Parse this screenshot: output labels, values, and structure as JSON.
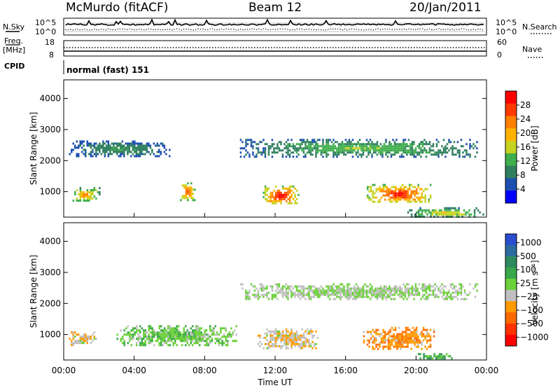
{
  "header": {
    "station": "McMurdo (fitACF)",
    "beam": "Beam 12",
    "date": "20/Jan/2011"
  },
  "ancillary": {
    "nsky_label": "N.Sky",
    "nsky_ticks": [
      "10^5",
      "10^0"
    ],
    "nsearch_label": "N.Search",
    "nsearch_ticks": [
      "10^5",
      "10^0"
    ],
    "freq_label_line1": "Freq.",
    "freq_label_line2": "[MHz]",
    "freq_ticks": [
      "18",
      "8"
    ],
    "nave_label": "Nave",
    "nave_ticks": [
      "60",
      "0"
    ],
    "cpid_label": "CPID",
    "cpid_value": "normal (fast) 151"
  },
  "chart_data": [
    {
      "type": "heatmap",
      "ylabel": "Slant Range [km]",
      "xlabel": "",
      "ylim": [
        180,
        4600
      ],
      "yticks": [
        1000,
        2000,
        3000,
        4000
      ],
      "xlim": [
        0,
        24
      ],
      "colorbar": {
        "label": "Power [dB]",
        "range": [
          0,
          32
        ],
        "ticks": [
          4,
          8,
          12,
          16,
          20,
          24,
          28
        ],
        "colors": [
          "#0000ff",
          "#1d4fb0",
          "#2f7f5f",
          "#3fae4c",
          "#c6d321",
          "#ffb300",
          "#ff7f00",
          "#ff3a00",
          "#ff0000"
        ]
      },
      "features": [
        {
          "t0": 0.3,
          "t1": 6.0,
          "r0": 2150,
          "r1": 2650,
          "value": 11
        },
        {
          "t0": 10.0,
          "t1": 23.5,
          "r0": 2150,
          "r1": 2700,
          "value": 14
        },
        {
          "t0": 0.4,
          "t1": 2.0,
          "r0": 700,
          "r1": 1150,
          "value": 22
        },
        {
          "t0": 6.6,
          "t1": 7.4,
          "r0": 750,
          "r1": 1300,
          "value": 26
        },
        {
          "t0": 11.3,
          "t1": 13.3,
          "r0": 600,
          "r1": 1200,
          "value": 30
        },
        {
          "t0": 17.2,
          "t1": 20.8,
          "r0": 650,
          "r1": 1250,
          "value": 29
        },
        {
          "t0": 19.5,
          "t1": 23.8,
          "r0": 200,
          "r1": 500,
          "value": 18
        }
      ]
    },
    {
      "type": "heatmap",
      "ylabel": "Slant Range [km]",
      "xlabel": "Time UT",
      "ylim": [
        180,
        4600
      ],
      "yticks": [
        1000,
        2000,
        3000,
        4000
      ],
      "xlim": [
        0,
        24
      ],
      "xticklabels": [
        "00:00",
        "04:00",
        "08:00",
        "12:00",
        "16:00",
        "20:00",
        "00:00"
      ],
      "colorbar": {
        "label": "Velocity [m s⁻¹]",
        "range": [
          -1000,
          1000
        ],
        "ticks": [
          "1000",
          "500",
          "100",
          "25",
          "−25",
          "−100",
          "−500",
          "−1000"
        ],
        "colors": [
          "#2a4dd0",
          "#2d6aa0",
          "#2d8a5d",
          "#3aa84a",
          "#6cd13a",
          "#c0c0c0",
          "#ff9a00",
          "#ff6a00",
          "#ff3300",
          "#ff0000"
        ]
      },
      "features": [
        {
          "t0": 10.0,
          "t1": 23.5,
          "r0": 2150,
          "r1": 2650,
          "value": 0
        },
        {
          "t0": 0.3,
          "t1": 1.8,
          "r0": 650,
          "r1": 1100,
          "value": -150
        },
        {
          "t0": 3.0,
          "t1": 9.8,
          "r0": 650,
          "r1": 1300,
          "value": 120
        },
        {
          "t0": 11.0,
          "t1": 14.5,
          "r0": 550,
          "r1": 1200,
          "value": -150
        },
        {
          "t0": 17.0,
          "t1": 21.0,
          "r0": 550,
          "r1": 1250,
          "value": -350
        },
        {
          "t0": 20.0,
          "t1": 22.0,
          "r0": 200,
          "r1": 400,
          "value": 300
        }
      ]
    }
  ]
}
